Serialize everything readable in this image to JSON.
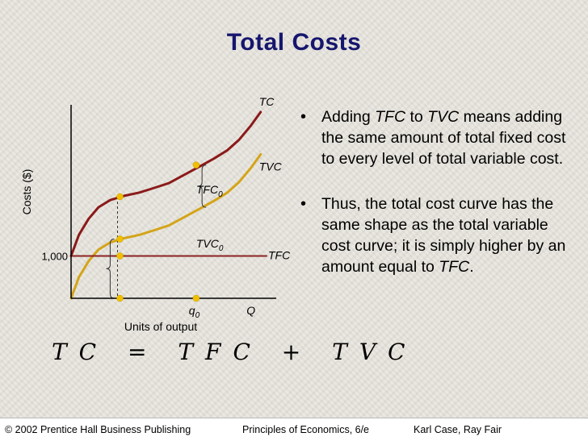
{
  "slide": {
    "title": "Total Costs",
    "bullet1": {
      "marker": "•",
      "p1": "Adding ",
      "e1": "TFC",
      "p2": " to ",
      "e2": "TVC",
      "p3": " means adding the same amount of total fixed cost to every level of total variable cost."
    },
    "bullet2": {
      "marker": "•",
      "p1": "Thus, the total cost curve has the same shape as the total variable cost curve; it is simply higher by an amount equal to ",
      "e1": "TFC",
      "p2": "."
    },
    "equation": "TC = TFC + TVC",
    "footer": {
      "left": "© 2002 Prentice Hall Business Publishing",
      "middle": "Principles of Economics, 6/e",
      "right": "Karl Case, Ray Fair"
    }
  },
  "colors": {
    "tc": "#8b1a1a",
    "tvc": "#d4a419",
    "tfc": "#8b2222",
    "markers": "#f0c000",
    "title": "#16166e"
  },
  "chart_data": {
    "type": "line",
    "xlabel": "Units of output",
    "ylabel": "Costs ($)",
    "x_ticks": [
      {
        "x": 0.63,
        "label": "q",
        "sub": "0"
      },
      {
        "x": 0.92,
        "label": "Q",
        "sub": ""
      }
    ],
    "y_ticks": [
      {
        "y": 1000,
        "label": "1,000"
      }
    ],
    "xlim": [
      0,
      1
    ],
    "ylim": [
      0,
      4420
    ],
    "grid": false,
    "series": [
      {
        "name": "TC",
        "x": [
          0,
          0.04,
          0.09,
          0.14,
          0.2,
          0.27,
          0.35,
          0.42,
          0.5,
          0.58,
          0.66,
          0.73,
          0.8,
          0.86,
          0.92,
          0.97
        ],
        "y": [
          1000,
          1500,
          1880,
          2150,
          2320,
          2420,
          2500,
          2600,
          2720,
          2920,
          3120,
          3300,
          3500,
          3750,
          4080,
          4400
        ]
      },
      {
        "name": "TVC",
        "x": [
          0,
          0.04,
          0.09,
          0.14,
          0.2,
          0.27,
          0.35,
          0.42,
          0.5,
          0.58,
          0.66,
          0.73,
          0.8,
          0.86,
          0.92,
          0.97
        ],
        "y": [
          0,
          500,
          880,
          1150,
          1320,
          1420,
          1500,
          1600,
          1720,
          1920,
          2120,
          2300,
          2500,
          2750,
          3080,
          3400
        ]
      },
      {
        "name": "TFC",
        "x": [
          0,
          1
        ],
        "y": [
          1000,
          1000
        ]
      }
    ],
    "annotations": [
      {
        "text": "TFC",
        "sub": "0",
        "x": 0.64,
        "y": 2480
      },
      {
        "text": "TVC",
        "sub": "0",
        "x": 0.64,
        "y": 1200
      }
    ],
    "markers": [
      {
        "x": 0.25,
        "y": 2400
      },
      {
        "x": 0.25,
        "y": 1400
      },
      {
        "x": 0.25,
        "y": 1000
      },
      {
        "x": 0.25,
        "y": 0
      },
      {
        "x": 0.64,
        "y": 3150
      },
      {
        "x": 0.64,
        "y": 0
      }
    ],
    "guides": [
      {
        "x": 0.25,
        "y0": 0,
        "y1": 2400
      }
    ],
    "brackets": [
      {
        "x": 0.2,
        "y0": 0,
        "y1": 1400
      },
      {
        "x": 0.67,
        "y0": 2150,
        "y1": 3150
      }
    ]
  }
}
